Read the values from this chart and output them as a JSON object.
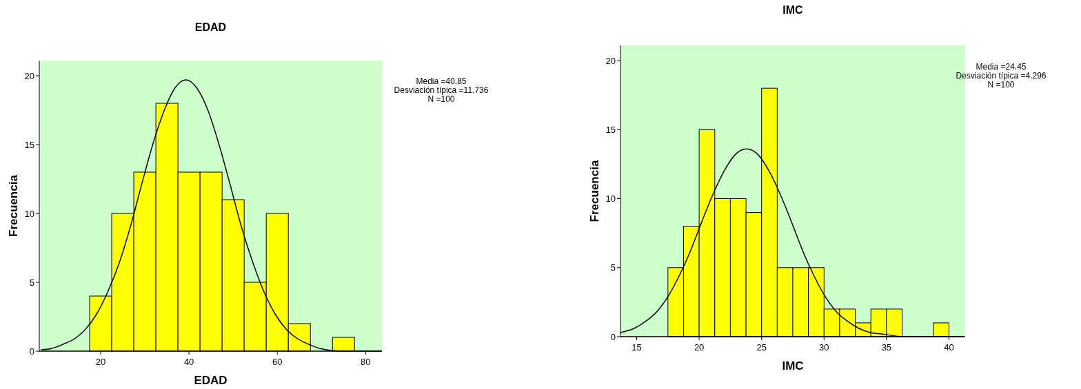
{
  "chart_data": [
    {
      "type": "histogram",
      "title": "EDAD",
      "xlabel": "EDAD",
      "ylabel": "Frecuencia",
      "bins": [
        17.5,
        22.5,
        27.5,
        32.5,
        37.5,
        42.5,
        47.5,
        52.5,
        57.5,
        62.5,
        67.5,
        72.5,
        77.5
      ],
      "values": [
        4,
        10,
        13,
        18,
        13,
        13,
        11,
        5,
        10,
        2,
        0,
        1
      ],
      "color": "#ffff00",
      "xlim": [
        6.1,
        83.7
      ],
      "xticks": [
        20,
        40,
        60,
        80
      ],
      "ylim": [
        0,
        21.1
      ],
      "yticks": [
        0,
        5,
        10,
        15,
        20
      ],
      "grid": false,
      "series": [
        {
          "type": "line",
          "color": "#000000",
          "x": [
            6.5,
            9.0,
            11.5,
            14.1,
            16.6,
            19.1,
            21.6,
            24.2,
            26.7,
            29.2,
            31.7,
            34.3,
            36.8,
            39.3,
            41.8,
            44.4,
            46.9,
            49.4,
            51.9,
            54.5,
            57.0,
            59.5,
            62.0,
            64.6,
            67.1,
            69.6,
            74.7,
            79.7,
            83.7
          ],
          "values": [
            0.1,
            0.2,
            0.5,
            0.9,
            1.6,
            2.7,
            4.3,
            6.4,
            9.0,
            12.0,
            14.9,
            17.4,
            19.1,
            19.7,
            19.1,
            17.4,
            14.9,
            12.0,
            9.0,
            6.4,
            4.3,
            2.7,
            1.6,
            0.9,
            0.5,
            0.2,
            0.0,
            0.0,
            0.0
          ]
        }
      ],
      "annotations": [
        "Media =40.85",
        "Desviación típica =11.736",
        "N =100"
      ]
    },
    {
      "type": "histogram",
      "title": "IMC",
      "xlabel": "IMC",
      "ylabel": "Frecuencia",
      "bins": [
        17.5,
        18.75,
        20,
        21.25,
        22.5,
        23.75,
        25,
        26.25,
        27.5,
        28.75,
        30,
        31.25,
        32.5,
        33.75,
        35,
        36.25,
        37.5,
        38.75,
        40
      ],
      "values": [
        5,
        8,
        15,
        10,
        10,
        9,
        18,
        5,
        5,
        5,
        2,
        2,
        1,
        2,
        2,
        0,
        0,
        1
      ],
      "color": "#ffff00",
      "xlim": [
        13.7,
        41.3
      ],
      "xticks": [
        15,
        20,
        25,
        30,
        35,
        40
      ],
      "ylim": [
        0,
        21.1
      ],
      "yticks": [
        0,
        5,
        10,
        15,
        20
      ],
      "grid": false,
      "series": [
        {
          "type": "line",
          "color": "#000000",
          "x": [
            13.7,
            14.8,
            15.7,
            16.6,
            17.5,
            18.4,
            19.3,
            20.2,
            21.1,
            22.0,
            22.9,
            23.8,
            24.7,
            25.6,
            26.5,
            27.4,
            28.3,
            29.2,
            30.1,
            31.0,
            31.9,
            32.8,
            33.7,
            34.6,
            36.4,
            38.2,
            41.1
          ],
          "values": [
            0.3,
            0.6,
            1.1,
            1.8,
            2.9,
            4.4,
            6.2,
            8.3,
            10.3,
            12.0,
            13.2,
            13.6,
            13.2,
            12.0,
            10.3,
            8.3,
            6.2,
            4.4,
            2.9,
            1.8,
            1.1,
            0.6,
            0.3,
            0.2,
            0.0,
            0.0,
            0.0
          ]
        }
      ],
      "annotations": [
        "Media =24.45",
        "Desviación típica =4.296",
        "N =100"
      ]
    }
  ]
}
